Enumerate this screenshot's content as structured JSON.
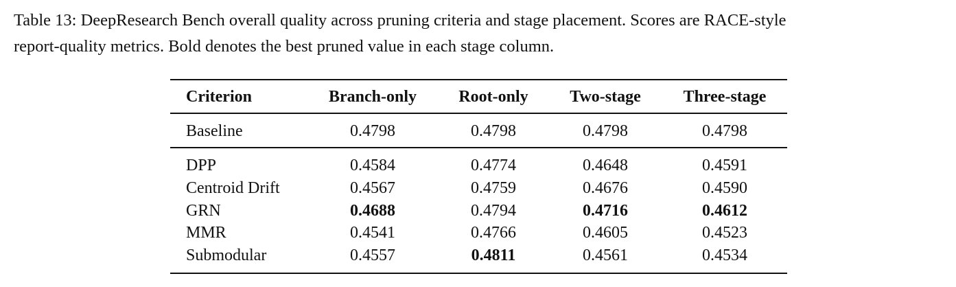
{
  "caption": {
    "lines": [
      "Table 13: DeepResearch Bench overall quality across pruning criteria and stage placement. Scores are RACE-style",
      "report-quality metrics. Bold denotes the best pruned value in each stage column."
    ]
  },
  "table": {
    "header": [
      "Criterion",
      "Branch-only",
      "Root-only",
      "Two-stage",
      "Three-stage"
    ],
    "rows": [
      [
        "Baseline",
        "0.4798",
        "0.4798",
        "0.4798",
        "0.4798"
      ],
      [
        "DPP",
        "0.4584",
        "0.4774",
        "0.4648",
        "0.4591"
      ],
      [
        "Centroid Drift",
        "0.4567",
        "0.4759",
        "0.4676",
        "0.4590"
      ],
      [
        "GRN",
        {
          "text": "0.4688",
          "bold": true
        },
        "0.4794",
        {
          "text": "0.4716",
          "bold": true
        },
        {
          "text": "0.4612",
          "bold": true
        }
      ],
      [
        "MMR",
        "0.4541",
        "0.4766",
        "0.4605",
        "0.4523"
      ],
      [
        "Submodular",
        "0.4557",
        {
          "text": "0.4811",
          "bold": true
        },
        "0.4561",
        "0.4534"
      ]
    ]
  }
}
